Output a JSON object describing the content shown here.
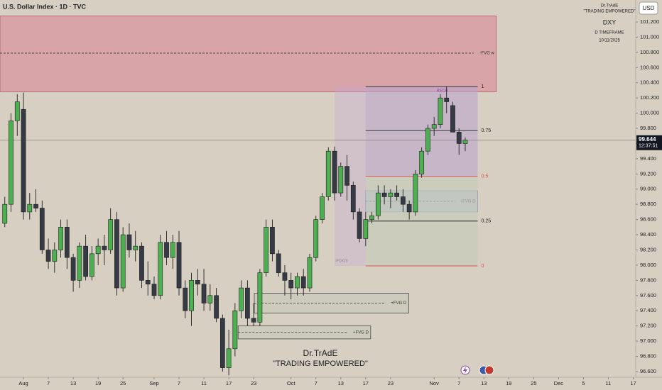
{
  "chart_data": {
    "type": "candlestick",
    "title": "U.S. Dollar Index · 1D · TVC",
    "currency_button": "USD",
    "info_block": [
      "Dr.TrAdE",
      "\"TRADING EMPOWERED\"",
      "DXY",
      "D TIMEFRAME",
      "10/11/2025"
    ],
    "watermark": [
      "Dr.TrAdE",
      "\"TRADING EMPOWERED\""
    ],
    "up_color": "#4caf50",
    "down_color": "#363a45",
    "xlim": [
      -3.77,
      98.4
    ],
    "ylim": [
      96.525,
      101.489
    ],
    "xticks": [
      {
        "value": 0,
        "label": "Aug"
      },
      {
        "value": 4,
        "label": "7"
      },
      {
        "value": 8,
        "label": "13"
      },
      {
        "value": 12,
        "label": "19"
      },
      {
        "value": 16,
        "label": "25"
      },
      {
        "value": 21,
        "label": "Sep"
      },
      {
        "value": 25,
        "label": "7"
      },
      {
        "value": 29,
        "label": "11"
      },
      {
        "value": 33,
        "label": "17"
      },
      {
        "value": 37,
        "label": "23"
      },
      {
        "value": 43,
        "label": "Oct"
      },
      {
        "value": 47,
        "label": "7"
      },
      {
        "value": 51,
        "label": "13"
      },
      {
        "value": 55,
        "label": "17"
      },
      {
        "value": 59,
        "label": "23"
      },
      {
        "value": 66,
        "label": "Nov"
      },
      {
        "value": 70,
        "label": "7"
      },
      {
        "value": 74,
        "label": "13"
      },
      {
        "value": 78,
        "label": "19"
      },
      {
        "value": 82,
        "label": "25"
      },
      {
        "value": 86,
        "label": "Dec"
      },
      {
        "value": 90,
        "label": "5"
      },
      {
        "value": 94,
        "label": "11"
      },
      {
        "value": 98,
        "label": "17"
      }
    ],
    "yticks": [
      {
        "value": 96.6,
        "label": "96.600"
      },
      {
        "value": 96.8,
        "label": "96.800"
      },
      {
        "value": 97.0,
        "label": "97.000"
      },
      {
        "value": 97.2,
        "label": "97.200"
      },
      {
        "value": 97.4,
        "label": "97.400"
      },
      {
        "value": 97.6,
        "label": "97.600"
      },
      {
        "value": 97.8,
        "label": "97.800"
      },
      {
        "value": 98.0,
        "label": "98.000"
      },
      {
        "value": 98.2,
        "label": "98.200"
      },
      {
        "value": 98.4,
        "label": "98.400"
      },
      {
        "value": 98.6,
        "label": "98.600"
      },
      {
        "value": 98.8,
        "label": "98.800"
      },
      {
        "value": 99.0,
        "label": "99.000"
      },
      {
        "value": 99.2,
        "label": "99.200"
      },
      {
        "value": 99.4,
        "label": "99.400"
      },
      {
        "value": 99.6,
        "label": "99.600"
      },
      {
        "value": 99.8,
        "label": "99.800"
      },
      {
        "value": 100.0,
        "label": "100.000"
      },
      {
        "value": 100.2,
        "label": "100.200"
      },
      {
        "value": 100.4,
        "label": "100.400"
      },
      {
        "value": 100.6,
        "label": "100.600"
      },
      {
        "value": 100.8,
        "label": "100.800"
      },
      {
        "value": 101.0,
        "label": "101.000"
      },
      {
        "value": 101.2,
        "label": "101.200"
      }
    ],
    "last_price": {
      "value": 99.644,
      "countdown": "12:37:51"
    },
    "zones": [
      {
        "label": "-FVG w",
        "top": 101.28,
        "bottom": 100.28,
        "mid": 100.79,
        "x": [
          -4,
          76
        ],
        "fill": "#d98d98",
        "stroke": "#b06070"
      },
      {
        "label": "+FVG D",
        "top": 98.98,
        "bottom": 98.7,
        "mid": 98.84,
        "x": [
          55,
          73
        ],
        "fill": "#a9b8d8",
        "stroke": "#6f86b8"
      },
      {
        "label": "+FVG D",
        "top": 97.63,
        "bottom": 97.37,
        "mid": 97.5,
        "x": [
          37.1,
          61.9
        ],
        "fill": "#c8c9b8",
        "stroke": "#444"
      },
      {
        "label": "+FVG D",
        "top": 97.2,
        "bottom": 97.03,
        "mid": 97.115,
        "x": [
          34.5,
          55.8
        ],
        "fill": "#c8c9b8",
        "stroke": "#444"
      }
    ],
    "fib": {
      "x": [
        55,
        73
      ],
      "box_x": [
        50,
        73
      ],
      "top_label": "RECH",
      "bottom_label": "IPDX20",
      "levels": [
        {
          "ratio": 1,
          "price": 100.35,
          "color": "#222"
        },
        {
          "ratio": 0.75,
          "price": 99.77,
          "color": "#222"
        },
        {
          "ratio": 0.5,
          "price": 99.17,
          "color": "#e05050"
        },
        {
          "ratio": 0.25,
          "price": 98.58,
          "color": "#222"
        },
        {
          "ratio": 0,
          "price": 97.99,
          "color": "#e05050"
        }
      ]
    },
    "candles": [
      {
        "x": -3,
        "open": 98.55,
        "high": 98.9,
        "low": 98.5,
        "close": 98.8
      },
      {
        "x": -2,
        "open": 98.8,
        "high": 100.0,
        "low": 98.7,
        "close": 99.9
      },
      {
        "x": -1,
        "open": 99.9,
        "high": 100.25,
        "low": 99.7,
        "close": 100.15
      },
      {
        "x": 0,
        "open": 100.05,
        "high": 100.27,
        "low": 98.6,
        "close": 98.7
      },
      {
        "x": 1,
        "open": 98.7,
        "high": 98.95,
        "low": 98.6,
        "close": 98.8
      },
      {
        "x": 2,
        "open": 98.8,
        "high": 99.0,
        "low": 98.7,
        "close": 98.75
      },
      {
        "x": 3,
        "open": 98.75,
        "high": 98.85,
        "low": 98.15,
        "close": 98.2
      },
      {
        "x": 4,
        "open": 98.2,
        "high": 98.35,
        "low": 97.95,
        "close": 98.05
      },
      {
        "x": 5,
        "open": 98.05,
        "high": 98.3,
        "low": 97.9,
        "close": 98.2
      },
      {
        "x": 6,
        "open": 98.2,
        "high": 98.6,
        "low": 98.1,
        "close": 98.5
      },
      {
        "x": 7,
        "open": 98.5,
        "high": 98.6,
        "low": 97.95,
        "close": 98.1
      },
      {
        "x": 8,
        "open": 98.1,
        "high": 98.15,
        "low": 97.65,
        "close": 97.8
      },
      {
        "x": 9,
        "open": 97.8,
        "high": 98.3,
        "low": 97.7,
        "close": 98.25
      },
      {
        "x": 10,
        "open": 98.25,
        "high": 98.4,
        "low": 97.8,
        "close": 97.85
      },
      {
        "x": 11,
        "open": 97.85,
        "high": 98.25,
        "low": 97.8,
        "close": 98.15
      },
      {
        "x": 12,
        "open": 98.15,
        "high": 98.35,
        "low": 98.0,
        "close": 98.25
      },
      {
        "x": 13,
        "open": 98.25,
        "high": 98.4,
        "low": 98.0,
        "close": 98.2
      },
      {
        "x": 14,
        "open": 98.2,
        "high": 98.75,
        "low": 98.15,
        "close": 98.6
      },
      {
        "x": 15,
        "open": 98.6,
        "high": 98.7,
        "low": 97.6,
        "close": 97.7
      },
      {
        "x": 16,
        "open": 97.7,
        "high": 98.5,
        "low": 97.65,
        "close": 98.4
      },
      {
        "x": 17,
        "open": 98.4,
        "high": 98.55,
        "low": 98.1,
        "close": 98.2
      },
      {
        "x": 18,
        "open": 98.2,
        "high": 98.45,
        "low": 98.05,
        "close": 98.25
      },
      {
        "x": 19,
        "open": 98.25,
        "high": 98.3,
        "low": 97.7,
        "close": 97.8
      },
      {
        "x": 20,
        "open": 97.8,
        "high": 98.05,
        "low": 97.6,
        "close": 97.75
      },
      {
        "x": 21,
        "open": 97.75,
        "high": 97.85,
        "low": 97.55,
        "close": 97.6
      },
      {
        "x": 22,
        "open": 97.6,
        "high": 98.4,
        "low": 97.55,
        "close": 98.3
      },
      {
        "x": 23,
        "open": 98.3,
        "high": 98.45,
        "low": 98.0,
        "close": 98.1
      },
      {
        "x": 24,
        "open": 98.1,
        "high": 98.4,
        "low": 97.95,
        "close": 98.3
      },
      {
        "x": 25,
        "open": 98.3,
        "high": 98.45,
        "low": 97.6,
        "close": 97.7
      },
      {
        "x": 26,
        "open": 97.7,
        "high": 97.8,
        "low": 97.3,
        "close": 97.4
      },
      {
        "x": 27,
        "open": 97.4,
        "high": 97.9,
        "low": 97.2,
        "close": 97.8
      },
      {
        "x": 28,
        "open": 97.8,
        "high": 97.95,
        "low": 97.6,
        "close": 97.75
      },
      {
        "x": 29,
        "open": 97.75,
        "high": 97.95,
        "low": 97.4,
        "close": 97.5
      },
      {
        "x": 30,
        "open": 97.5,
        "high": 97.75,
        "low": 97.4,
        "close": 97.6
      },
      {
        "x": 31,
        "open": 97.6,
        "high": 97.7,
        "low": 97.25,
        "close": 97.3
      },
      {
        "x": 32,
        "open": 97.3,
        "high": 97.35,
        "low": 96.6,
        "close": 96.65
      },
      {
        "x": 33,
        "open": 96.65,
        "high": 97.15,
        "low": 96.55,
        "close": 96.9
      },
      {
        "x": 34,
        "open": 96.9,
        "high": 97.5,
        "low": 96.8,
        "close": 97.4
      },
      {
        "x": 35,
        "open": 97.4,
        "high": 97.8,
        "low": 97.3,
        "close": 97.7
      },
      {
        "x": 36,
        "open": 97.7,
        "high": 97.8,
        "low": 97.2,
        "close": 97.3
      },
      {
        "x": 37,
        "open": 97.3,
        "high": 97.5,
        "low": 97.2,
        "close": 97.25
      },
      {
        "x": 38,
        "open": 97.25,
        "high": 97.95,
        "low": 97.2,
        "close": 97.9
      },
      {
        "x": 39,
        "open": 97.9,
        "high": 98.6,
        "low": 97.85,
        "close": 98.5
      },
      {
        "x": 40,
        "open": 98.5,
        "high": 98.6,
        "low": 98.05,
        "close": 98.15
      },
      {
        "x": 41,
        "open": 98.15,
        "high": 98.2,
        "low": 97.85,
        "close": 97.9
      },
      {
        "x": 42,
        "open": 97.9,
        "high": 98.0,
        "low": 97.6,
        "close": 97.8
      },
      {
        "x": 43,
        "open": 97.8,
        "high": 97.9,
        "low": 97.55,
        "close": 97.7
      },
      {
        "x": 44,
        "open": 97.7,
        "high": 97.9,
        "low": 97.6,
        "close": 97.85
      },
      {
        "x": 45,
        "open": 97.85,
        "high": 97.95,
        "low": 97.6,
        "close": 97.7
      },
      {
        "x": 46,
        "open": 97.7,
        "high": 98.15,
        "low": 97.65,
        "close": 98.1
      },
      {
        "x": 47,
        "open": 98.1,
        "high": 98.65,
        "low": 98.05,
        "close": 98.6
      },
      {
        "x": 48,
        "open": 98.6,
        "high": 98.95,
        "low": 98.55,
        "close": 98.9
      },
      {
        "x": 49,
        "open": 98.9,
        "high": 99.55,
        "low": 98.85,
        "close": 99.5
      },
      {
        "x": 50,
        "open": 99.5,
        "high": 99.56,
        "low": 98.85,
        "close": 98.95
      },
      {
        "x": 51,
        "open": 98.95,
        "high": 99.35,
        "low": 98.9,
        "close": 99.3
      },
      {
        "x": 52,
        "open": 99.3,
        "high": 99.45,
        "low": 98.85,
        "close": 99.05
      },
      {
        "x": 53,
        "open": 99.05,
        "high": 99.1,
        "low": 98.6,
        "close": 98.7
      },
      {
        "x": 54,
        "open": 98.7,
        "high": 98.75,
        "low": 98.3,
        "close": 98.35
      },
      {
        "x": 55,
        "open": 98.35,
        "high": 98.7,
        "low": 98.25,
        "close": 98.6
      },
      {
        "x": 56,
        "open": 98.6,
        "high": 98.7,
        "low": 98.55,
        "close": 98.65
      },
      {
        "x": 57,
        "open": 98.65,
        "high": 99.05,
        "low": 98.6,
        "close": 98.95
      },
      {
        "x": 58,
        "open": 98.95,
        "high": 99.05,
        "low": 98.8,
        "close": 98.9
      },
      {
        "x": 59,
        "open": 98.9,
        "high": 99.0,
        "low": 98.75,
        "close": 98.95
      },
      {
        "x": 60,
        "open": 98.95,
        "high": 99.05,
        "low": 98.85,
        "close": 98.9
      },
      {
        "x": 61,
        "open": 98.9,
        "high": 99.0,
        "low": 98.7,
        "close": 98.8
      },
      {
        "x": 62,
        "open": 98.8,
        "high": 98.85,
        "low": 98.6,
        "close": 98.7
      },
      {
        "x": 63,
        "open": 98.7,
        "high": 99.25,
        "low": 98.65,
        "close": 99.2
      },
      {
        "x": 64,
        "open": 99.2,
        "high": 99.55,
        "low": 99.15,
        "close": 99.5
      },
      {
        "x": 65,
        "open": 99.5,
        "high": 99.85,
        "low": 99.45,
        "close": 99.8
      },
      {
        "x": 66,
        "open": 99.8,
        "high": 99.95,
        "low": 99.7,
        "close": 99.85
      },
      {
        "x": 67,
        "open": 99.85,
        "high": 100.25,
        "low": 99.8,
        "close": 100.2
      },
      {
        "x": 68,
        "open": 100.2,
        "high": 100.35,
        "low": 100.0,
        "close": 100.15
      },
      {
        "x": 69,
        "open": 100.1,
        "high": 100.15,
        "low": 99.75,
        "close": 99.75
      },
      {
        "x": 70,
        "open": 99.75,
        "high": 99.8,
        "low": 99.45,
        "close": 99.6
      },
      {
        "x": 71,
        "open": 99.6,
        "high": 99.68,
        "low": 99.5,
        "close": 99.644
      }
    ]
  }
}
